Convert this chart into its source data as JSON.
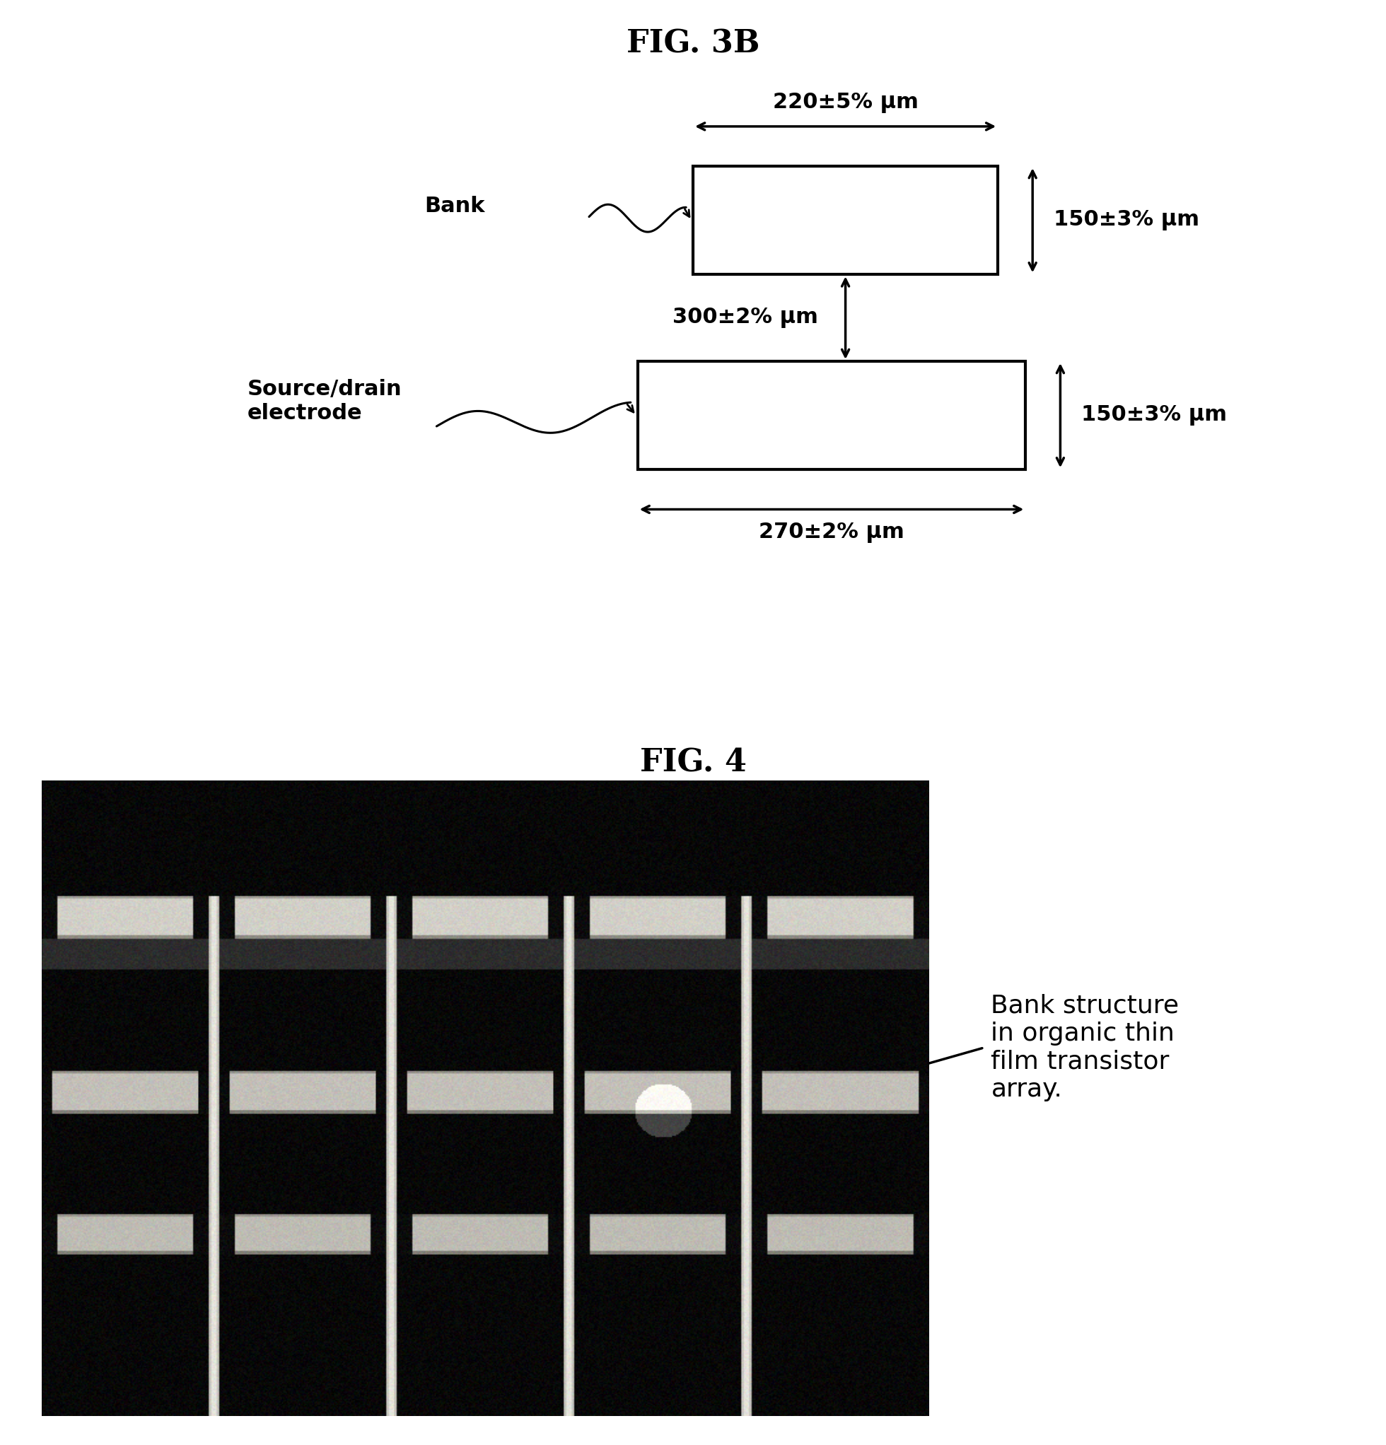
{
  "fig3b_title": "FIG. 3B",
  "fig4_title": "FIG. 4",
  "background_color": "#ffffff",
  "title_fontsize": 32,
  "label_fontsize": 22,
  "dim_fontsize": 22,
  "bank_label": "Bank",
  "source_label": "Source/drain\nelectrode",
  "dim_220": "220±5% μm",
  "dim_150_bank": "150±3% μm",
  "dim_300": "300±2% μm",
  "dim_150_source": "150±3% μm",
  "dim_270": "270±2% μm",
  "fig4_annotation": "Bank structure\nin organic thin\nfilm transistor\narray.",
  "fig4_annotation_fontsize": 26
}
